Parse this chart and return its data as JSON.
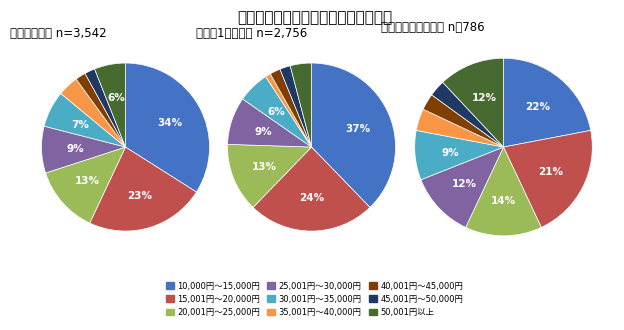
{
  "title": "クルマの維持費は月額いくらですか？",
  "charts": [
    {
      "label": "クルマ保有者 n=3,542",
      "values": [
        34,
        23,
        13,
        9,
        7,
        4,
        2,
        2,
        6
      ],
      "startangle": 90
    },
    {
      "label": "クルマ1台保有者 n=2,756",
      "values": [
        37,
        24,
        13,
        9,
        6,
        1,
        2,
        2,
        4
      ],
      "startangle": 90
    },
    {
      "label": "クルマ複数台保有者 n＝786",
      "values": [
        22,
        21,
        14,
        12,
        9,
        4,
        3,
        3,
        12
      ],
      "startangle": 90
    }
  ],
  "colors": [
    "#4472C4",
    "#C0504D",
    "#9BBB59",
    "#8064A2",
    "#4BACC6",
    "#F79646",
    "#7F3F00",
    "#1F3864",
    "#476A30"
  ],
  "legend_labels": [
    "10,000円～15,000円",
    "15,001円～20,000円",
    "20,001円～25,000円",
    "25,001円～30,000円",
    "30,001円～35,000円",
    "35,001円～40,000円",
    "40,001円～45,000円",
    "45,001円～50,000円",
    "50,001円以上"
  ],
  "bg_color": "#FFFFFF",
  "title_fontsize": 11,
  "label_fontsize": 7.5,
  "subtitle_fontsize": 8.5
}
